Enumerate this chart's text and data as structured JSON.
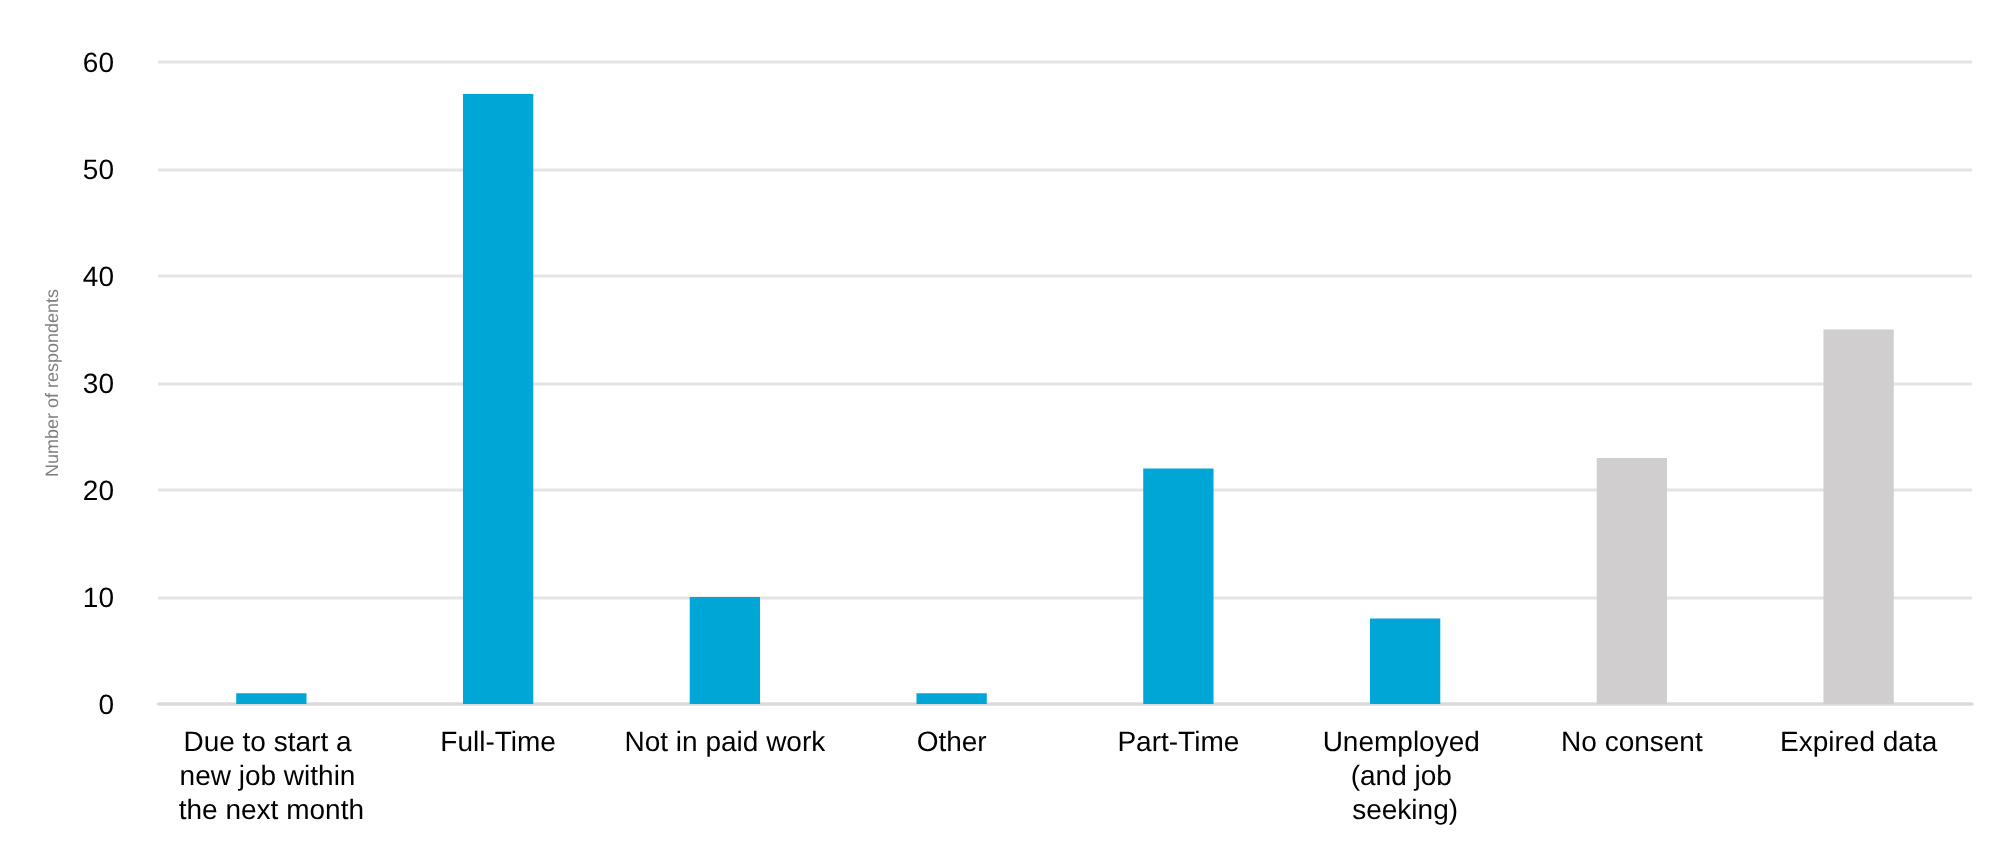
{
  "chart_data": {
    "type": "bar",
    "ylabel": "Number of respondents",
    "categories": [
      "Due to start a new job within the next month",
      "Full-Time",
      "Not in paid work",
      "Other",
      "Part-Time",
      "Unemployed (and job seeking)",
      "No consent",
      "Expired data"
    ],
    "values": [
      1,
      57,
      10,
      1,
      22,
      8,
      23,
      35
    ],
    "colors": [
      "#00a6d6",
      "#00a6d6",
      "#00a6d6",
      "#00a6d6",
      "#00a6d6",
      "#00a6d6",
      "#d0cece",
      "#d0cece"
    ],
    "ylim": [
      0,
      60
    ],
    "yticks": [
      0,
      10,
      20,
      30,
      40,
      50,
      60
    ],
    "grid": "y"
  }
}
